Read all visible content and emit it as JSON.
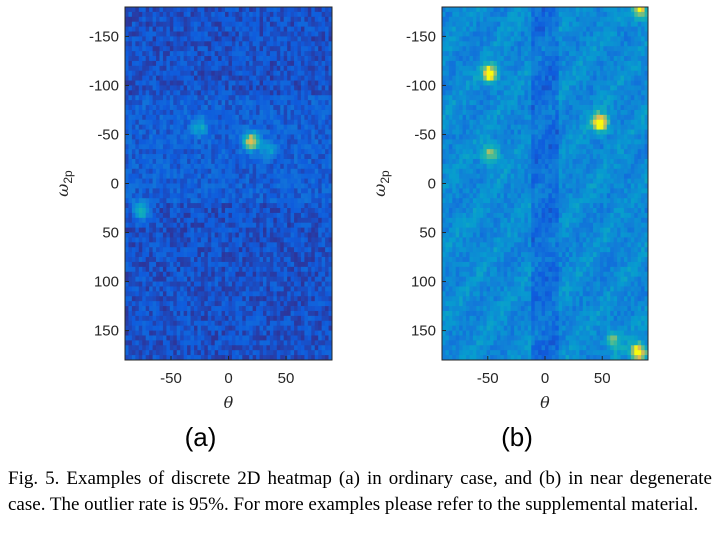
{
  "chart_data": [
    {
      "type": "heatmap",
      "panel_label": "(a)",
      "description_case": "ordinary case",
      "xlabel": "θ",
      "ylabel": "ω",
      "ylabel_sub": "2p",
      "xlim": [
        -90,
        90
      ],
      "ylim": [
        -180,
        180
      ],
      "y_reversed": true,
      "xticks": [
        -50,
        0,
        50
      ],
      "yticks": [
        -150,
        -100,
        -50,
        0,
        50,
        100,
        150
      ],
      "bins": {
        "nx": 60,
        "ny": 72
      },
      "background_level": 0.12,
      "hotspots": [
        {
          "theta": 20,
          "omega": -43,
          "peak": 1.0
        },
        {
          "theta": -76,
          "omega": 28,
          "peak": 0.55
        },
        {
          "theta": -25,
          "omega": -57,
          "peak": 0.45
        },
        {
          "theta": 35,
          "omega": -35,
          "peak": 0.35
        }
      ]
    },
    {
      "type": "heatmap",
      "panel_label": "(b)",
      "description_case": "near degenerate case",
      "xlabel": "θ",
      "ylabel": "ω",
      "ylabel_sub": "2p",
      "xlim": [
        -90,
        90
      ],
      "ylim": [
        -180,
        180
      ],
      "y_reversed": true,
      "xticks": [
        -50,
        0,
        50
      ],
      "yticks": [
        -150,
        -100,
        -50,
        0,
        50,
        100,
        150
      ],
      "bins": {
        "nx": 60,
        "ny": 72
      },
      "background_level": 0.32,
      "hotspots": [
        {
          "theta": -48,
          "omega": -112,
          "peak": 0.95
        },
        {
          "theta": 48,
          "omega": -62,
          "peak": 1.0
        },
        {
          "theta": -48,
          "omega": -30,
          "peak": 0.6
        },
        {
          "theta": 82,
          "omega": 172,
          "peak": 0.95
        },
        {
          "theta": 83,
          "omega": -176,
          "peak": 0.75
        },
        {
          "theta": 60,
          "omega": 160,
          "peak": 0.5
        }
      ]
    }
  ],
  "caption": "Fig. 5.  Examples of discrete 2D heatmap (a) in ordinary case, and (b) in near degenerate case. The outlier rate is 95%. For more examples please refer to the supplemental material.",
  "colors": {
    "colormap": "parula",
    "low": "#352a87",
    "high": "#f9fb0e",
    "frame": "#262626"
  }
}
